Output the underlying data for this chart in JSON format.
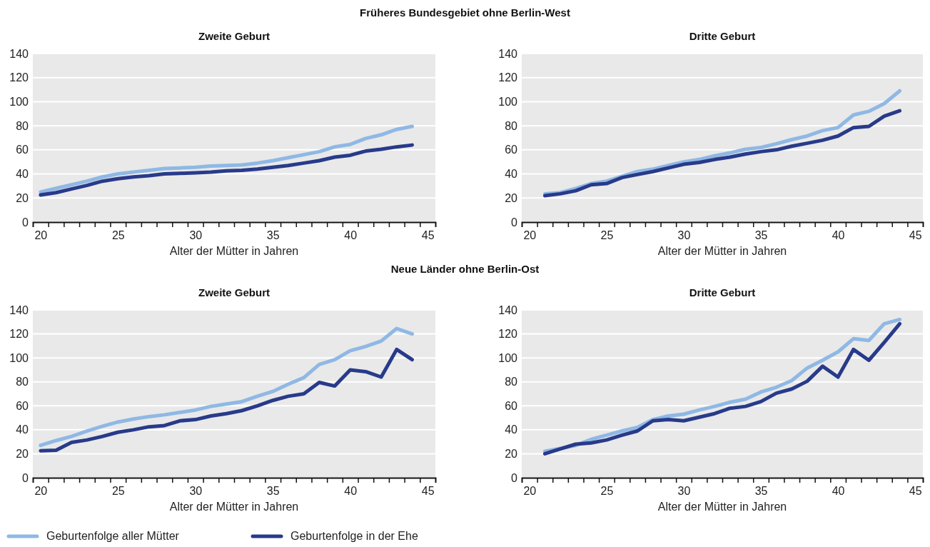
{
  "chart_data": [
    {
      "type": "line",
      "title": "Zweite Geburt",
      "xlabel": "Alter der Mütter in Jahren",
      "annotations": [
        "Früheres Bundesgebiet ohne Berlin-West"
      ],
      "xlim": [
        19.5,
        45.5
      ],
      "xticks": [
        20,
        {
          "value": 20.5,
          "label": null
        },
        {
          "value": 21.5,
          "label": null
        },
        {
          "value": 22.5,
          "label": null
        },
        {
          "value": 23.5,
          "label": null
        },
        {
          "value": 24.5,
          "label": null
        },
        25,
        {
          "value": 25.5,
          "label": null
        },
        {
          "value": 26.5,
          "label": null
        },
        {
          "value": 27.5,
          "label": null
        },
        {
          "value": 28.5,
          "label": null
        },
        {
          "value": 29.5,
          "label": null
        },
        30,
        {
          "value": 30.5,
          "label": null
        },
        {
          "value": 31.5,
          "label": null
        },
        {
          "value": 32.5,
          "label": null
        },
        {
          "value": 33.5,
          "label": null
        },
        {
          "value": 34.5,
          "label": null
        },
        35,
        {
          "value": 35.5,
          "label": null
        },
        {
          "value": 36.5,
          "label": null
        },
        {
          "value": 37.5,
          "label": null
        },
        {
          "value": 38.5,
          "label": null
        },
        {
          "value": 39.5,
          "label": null
        },
        40,
        {
          "value": 40.5,
          "label": null
        },
        {
          "value": 41.5,
          "label": null
        },
        {
          "value": 42.5,
          "label": null
        },
        {
          "value": 43.5,
          "label": null
        },
        {
          "value": 44.5,
          "label": null
        },
        45
      ],
      "ylim": [
        0,
        140
      ],
      "yticks": [
        0,
        20,
        40,
        60,
        80,
        100,
        120,
        140
      ],
      "grid": "y",
      "legend": false,
      "x": [
        20,
        21,
        22,
        23,
        24,
        25,
        26,
        27,
        28,
        29,
        30,
        31,
        32,
        33,
        34,
        35,
        36,
        37,
        38,
        39,
        40,
        41,
        42,
        43,
        44
      ],
      "series": [
        {
          "color": "#8fb8e4",
          "values": [
            25,
            28,
            31,
            34,
            37.5,
            40,
            41.5,
            43,
            44.5,
            45,
            45.5,
            46.5,
            47,
            47.5,
            49,
            51,
            53.5,
            56,
            58.5,
            62.5,
            64.5,
            69.5,
            72.5,
            77,
            79.5
          ]
        },
        {
          "color": "#283a8a",
          "values": [
            22.5,
            24.5,
            27.5,
            30.5,
            34,
            36,
            37.5,
            38.5,
            40,
            40.5,
            41,
            41.5,
            42.5,
            43,
            44,
            45.5,
            47,
            49,
            51,
            54,
            55.5,
            59,
            60.5,
            62.5,
            64
          ]
        }
      ]
    },
    {
      "type": "line",
      "title": "Dritte Geburt",
      "xlabel": "Alter der Mütter in Jahren",
      "xlim": [
        19.5,
        45.5
      ],
      "xticks": [
        20,
        {
          "value": 20.5,
          "label": null
        },
        {
          "value": 21.5,
          "label": null
        },
        {
          "value": 22.5,
          "label": null
        },
        {
          "value": 23.5,
          "label": null
        },
        {
          "value": 24.5,
          "label": null
        },
        25,
        {
          "value": 25.5,
          "label": null
        },
        {
          "value": 26.5,
          "label": null
        },
        {
          "value": 27.5,
          "label": null
        },
        {
          "value": 28.5,
          "label": null
        },
        {
          "value": 29.5,
          "label": null
        },
        30,
        {
          "value": 30.5,
          "label": null
        },
        {
          "value": 31.5,
          "label": null
        },
        {
          "value": 32.5,
          "label": null
        },
        {
          "value": 33.5,
          "label": null
        },
        {
          "value": 34.5,
          "label": null
        },
        35,
        {
          "value": 35.5,
          "label": null
        },
        {
          "value": 36.5,
          "label": null
        },
        {
          "value": 37.5,
          "label": null
        },
        {
          "value": 38.5,
          "label": null
        },
        {
          "value": 39.5,
          "label": null
        },
        40,
        {
          "value": 40.5,
          "label": null
        },
        {
          "value": 41.5,
          "label": null
        },
        {
          "value": 42.5,
          "label": null
        },
        {
          "value": 43.5,
          "label": null
        },
        {
          "value": 44.5,
          "label": null
        },
        45
      ],
      "ylim": [
        0,
        140
      ],
      "yticks": [
        0,
        20,
        40,
        60,
        80,
        100,
        120,
        140
      ],
      "grid": "y",
      "legend": false,
      "x": [
        21,
        22,
        23,
        24,
        25,
        26,
        27,
        28,
        29,
        30,
        31,
        32,
        33,
        34,
        35,
        36,
        37,
        38,
        39,
        40,
        41,
        42,
        43,
        44
      ],
      "series": [
        {
          "color": "#8fb8e4",
          "values": [
            23.5,
            24.5,
            28,
            32,
            34,
            38,
            42,
            44,
            47,
            50,
            52,
            55,
            57.5,
            60.5,
            62,
            65,
            68.5,
            71.5,
            76,
            78.5,
            89,
            92,
            98.5,
            109
          ]
        },
        {
          "color": "#283a8a",
          "values": [
            22,
            23.5,
            26,
            31,
            32,
            37,
            39.5,
            42,
            45,
            48,
            49.5,
            52,
            54,
            56.5,
            58.5,
            60,
            63,
            65.5,
            68,
            71.5,
            78.5,
            79.5,
            88,
            92.5
          ]
        }
      ]
    },
    {
      "type": "line",
      "title": "Zweite Geburt",
      "xlabel": "Alter der Mütter in Jahren",
      "annotations": [
        "Neue Länder ohne Berlin-Ost"
      ],
      "xlim": [
        19.5,
        45.5
      ],
      "xticks": [
        20,
        {
          "value": 20.5,
          "label": null
        },
        {
          "value": 21.5,
          "label": null
        },
        {
          "value": 22.5,
          "label": null
        },
        {
          "value": 23.5,
          "label": null
        },
        {
          "value": 24.5,
          "label": null
        },
        25,
        {
          "value": 25.5,
          "label": null
        },
        {
          "value": 26.5,
          "label": null
        },
        {
          "value": 27.5,
          "label": null
        },
        {
          "value": 28.5,
          "label": null
        },
        {
          "value": 29.5,
          "label": null
        },
        30,
        {
          "value": 30.5,
          "label": null
        },
        {
          "value": 31.5,
          "label": null
        },
        {
          "value": 32.5,
          "label": null
        },
        {
          "value": 33.5,
          "label": null
        },
        {
          "value": 34.5,
          "label": null
        },
        35,
        {
          "value": 35.5,
          "label": null
        },
        {
          "value": 36.5,
          "label": null
        },
        {
          "value": 37.5,
          "label": null
        },
        {
          "value": 38.5,
          "label": null
        },
        {
          "value": 39.5,
          "label": null
        },
        40,
        {
          "value": 40.5,
          "label": null
        },
        {
          "value": 41.5,
          "label": null
        },
        {
          "value": 42.5,
          "label": null
        },
        {
          "value": 43.5,
          "label": null
        },
        {
          "value": 44.5,
          "label": null
        },
        45
      ],
      "ylim": [
        0,
        140
      ],
      "yticks": [
        0,
        20,
        40,
        60,
        80,
        100,
        120,
        140
      ],
      "grid": "y",
      "legend": "bottom",
      "x": [
        20,
        21,
        22,
        23,
        24,
        25,
        26,
        27,
        28,
        29,
        30,
        31,
        32,
        33,
        34,
        35,
        36,
        37,
        38,
        39,
        40,
        41,
        42,
        43,
        44
      ],
      "series": [
        {
          "name": "Geburtenfolge aller Mütter",
          "color": "#8fb8e4",
          "values": [
            27,
            31,
            34.5,
            39,
            43,
            46.5,
            49,
            51,
            52.5,
            54.5,
            56.5,
            59.5,
            61.5,
            63.5,
            68,
            72,
            78,
            83.5,
            94.5,
            98.5,
            106,
            109.5,
            114,
            124.5,
            120
          ]
        },
        {
          "name": "Geburtenfolge in der Ehe",
          "color": "#283a8a",
          "values": [
            22.5,
            23,
            29.5,
            31.5,
            34.5,
            38,
            40,
            42.5,
            43.5,
            47.5,
            48.5,
            51.5,
            53.5,
            56,
            60,
            64.5,
            68,
            70,
            79.5,
            76.5,
            90,
            88.5,
            84,
            107,
            98.5
          ]
        }
      ]
    },
    {
      "type": "line",
      "title": "Dritte Geburt",
      "xlabel": "Alter der Mütter in Jahren",
      "xlim": [
        19.5,
        45.5
      ],
      "xticks": [
        20,
        {
          "value": 20.5,
          "label": null
        },
        {
          "value": 21.5,
          "label": null
        },
        {
          "value": 22.5,
          "label": null
        },
        {
          "value": 23.5,
          "label": null
        },
        {
          "value": 24.5,
          "label": null
        },
        25,
        {
          "value": 25.5,
          "label": null
        },
        {
          "value": 26.5,
          "label": null
        },
        {
          "value": 27.5,
          "label": null
        },
        {
          "value": 28.5,
          "label": null
        },
        {
          "value": 29.5,
          "label": null
        },
        30,
        {
          "value": 30.5,
          "label": null
        },
        {
          "value": 31.5,
          "label": null
        },
        {
          "value": 32.5,
          "label": null
        },
        {
          "value": 33.5,
          "label": null
        },
        {
          "value": 34.5,
          "label": null
        },
        35,
        {
          "value": 35.5,
          "label": null
        },
        {
          "value": 36.5,
          "label": null
        },
        {
          "value": 37.5,
          "label": null
        },
        {
          "value": 38.5,
          "label": null
        },
        {
          "value": 39.5,
          "label": null
        },
        40,
        {
          "value": 40.5,
          "label": null
        },
        {
          "value": 41.5,
          "label": null
        },
        {
          "value": 42.5,
          "label": null
        },
        {
          "value": 43.5,
          "label": null
        },
        {
          "value": 44.5,
          "label": null
        },
        45
      ],
      "ylim": [
        0,
        140
      ],
      "yticks": [
        0,
        20,
        40,
        60,
        80,
        100,
        120,
        140
      ],
      "grid": "y",
      "legend": false,
      "x": [
        21,
        22,
        23,
        24,
        25,
        26,
        27,
        28,
        29,
        30,
        31,
        32,
        33,
        34,
        35,
        36,
        37,
        38,
        39,
        40,
        41,
        42,
        43,
        44
      ],
      "series": [
        {
          "color": "#8fb8e4",
          "values": [
            22,
            24.5,
            27,
            32,
            35.5,
            39,
            42,
            48.5,
            51.5,
            53,
            56.5,
            59.5,
            63,
            65.5,
            71.5,
            75.5,
            81,
            91.5,
            98,
            105,
            116,
            114.5,
            128.5,
            132
          ]
        },
        {
          "color": "#283a8a",
          "values": [
            20,
            24,
            28,
            29,
            31.5,
            35.5,
            39,
            47.5,
            48.5,
            47.5,
            50.5,
            53.5,
            58,
            59.5,
            63.5,
            70.5,
            74,
            80.5,
            93,
            84,
            107,
            98,
            113,
            128.5
          ]
        }
      ]
    }
  ]
}
